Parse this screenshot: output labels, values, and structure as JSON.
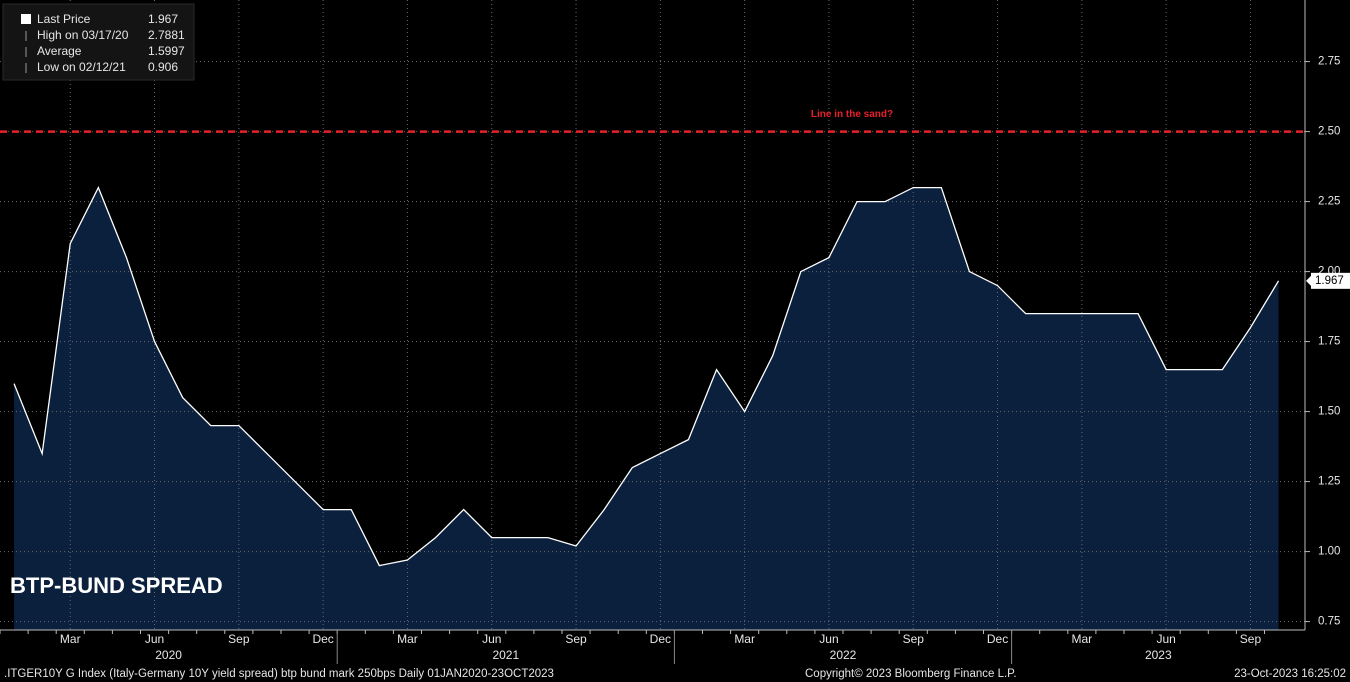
{
  "chart_data": {
    "type": "area",
    "title": "BTP-BUND SPREAD",
    "x": [
      "2020-01",
      "2020-02",
      "2020-03",
      "2020-04",
      "2020-05",
      "2020-06",
      "2020-07",
      "2020-08",
      "2020-09",
      "2020-10",
      "2020-11",
      "2020-12",
      "2021-01",
      "2021-02",
      "2021-03",
      "2021-04",
      "2021-05",
      "2021-06",
      "2021-07",
      "2021-08",
      "2021-09",
      "2021-10",
      "2021-11",
      "2021-12",
      "2022-01",
      "2022-02",
      "2022-03",
      "2022-04",
      "2022-05",
      "2022-06",
      "2022-07",
      "2022-08",
      "2022-09",
      "2022-10",
      "2022-11",
      "2022-12",
      "2023-01",
      "2023-02",
      "2023-03",
      "2023-04",
      "2023-05",
      "2023-06",
      "2023-07",
      "2023-08",
      "2023-09",
      "2023-10"
    ],
    "series": [
      {
        "name": "Last Price",
        "color": "#ffffff",
        "fill": "#0b203d",
        "values": [
          1.6,
          1.35,
          2.1,
          2.3,
          2.05,
          1.75,
          1.55,
          1.45,
          1.45,
          1.35,
          1.25,
          1.15,
          1.15,
          0.95,
          0.97,
          1.05,
          1.15,
          1.05,
          1.05,
          1.05,
          1.02,
          1.15,
          1.3,
          1.35,
          1.4,
          1.65,
          1.5,
          1.7,
          2.0,
          2.05,
          2.25,
          2.25,
          2.3,
          2.3,
          2.0,
          1.95,
          1.85,
          1.85,
          1.85,
          1.85,
          1.85,
          1.65,
          1.65,
          1.65,
          1.8,
          1.967
        ]
      }
    ],
    "stats": [
      {
        "label": "High on 03/17/20",
        "value": 2.7881
      },
      {
        "label": "Average",
        "value": 1.5997
      },
      {
        "label": "Low on 02/12/21",
        "value": 0.906
      }
    ],
    "hline": {
      "value": 2.5,
      "label": "Line in the sand?",
      "color": "#e8202a"
    },
    "ylim": [
      0.72,
      2.97
    ],
    "yticks": [
      0.75,
      {
        "value": 1.0,
        "label": "1.00"
      },
      1.25,
      {
        "value": 1.5,
        "label": "1.50"
      },
      1.75,
      {
        "value": 2.0,
        "label": "2.00"
      },
      2.25,
      {
        "value": 2.5,
        "label": "2.50"
      },
      2.75
    ],
    "xticks": [
      {
        "value": "2020-03",
        "label": "Mar"
      },
      {
        "value": "2020-06",
        "label": "Jun"
      },
      {
        "value": "2020-09",
        "label": "Sep"
      },
      {
        "value": "2020-12",
        "label": "Dec"
      },
      {
        "value": "2021-03",
        "label": "Mar"
      },
      {
        "value": "2021-06",
        "label": "Jun"
      },
      {
        "value": "2021-09",
        "label": "Sep"
      },
      {
        "value": "2021-12",
        "label": "Dec"
      },
      {
        "value": "2022-03",
        "label": "Mar"
      },
      {
        "value": "2022-06",
        "label": "Jun"
      },
      {
        "value": "2022-09",
        "label": "Sep"
      },
      {
        "value": "2022-12",
        "label": "Dec"
      },
      {
        "value": "2023-03",
        "label": "Mar"
      },
      {
        "value": "2023-06",
        "label": "Jun"
      },
      {
        "value": "2023-09",
        "label": "Sep"
      }
    ],
    "year_labels": [
      "2020",
      "2021",
      "2022",
      "2023"
    ],
    "grid": true,
    "footer_left": ".ITGER10Y G Index (Italy-Germany 10Y yield spread) btp bund mark 250bps  Daily 01JAN2020-23OCT2023",
    "copyright": "Copyright© 2023 Bloomberg Finance L.P.",
    "timestamp": "23-Oct-2023 16:25:02"
  }
}
